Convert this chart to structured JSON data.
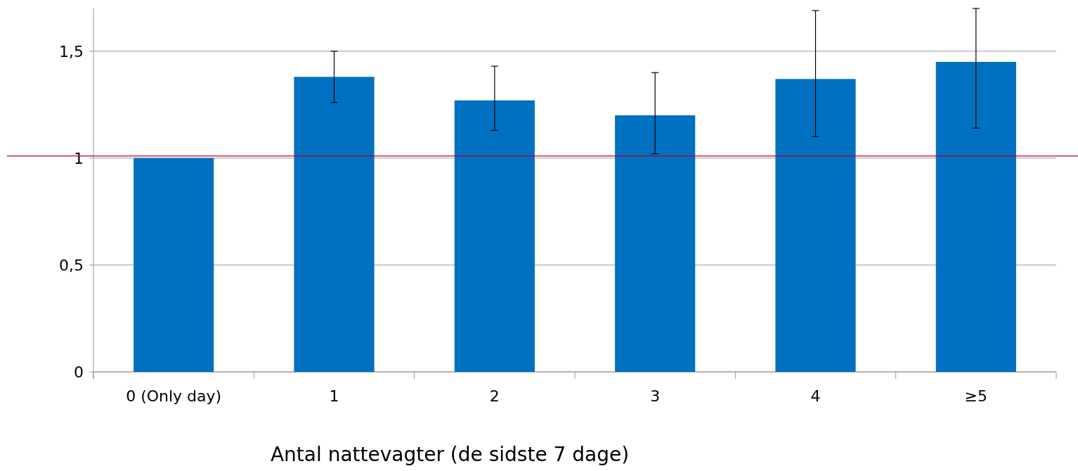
{
  "chart_data": {
    "type": "bar",
    "xlabel": "Antal nattevagter (de sidste 7 dage)",
    "categories": [
      "0 (Only day)",
      "1",
      "2",
      "3",
      "4",
      "≥5"
    ],
    "values": [
      1.0,
      1.38,
      1.27,
      1.2,
      1.37,
      1.45
    ],
    "errors": [
      null,
      [
        1.26,
        1.5
      ],
      [
        1.13,
        1.43
      ],
      [
        1.02,
        1.4
      ],
      [
        1.1,
        1.69
      ],
      [
        1.14,
        1.7
      ]
    ],
    "color": "#0070c0",
    "ylim": [
      0,
      1.7
    ],
    "yticks": [
      0,
      {
        "value": 0.5,
        "label": "0,5"
      },
      1,
      {
        "value": 1.5,
        "label": "1,5"
      }
    ],
    "grid": "y",
    "ref_lines": [
      {
        "axis": "y",
        "value": 1.01,
        "color": "#c00020"
      }
    ]
  }
}
